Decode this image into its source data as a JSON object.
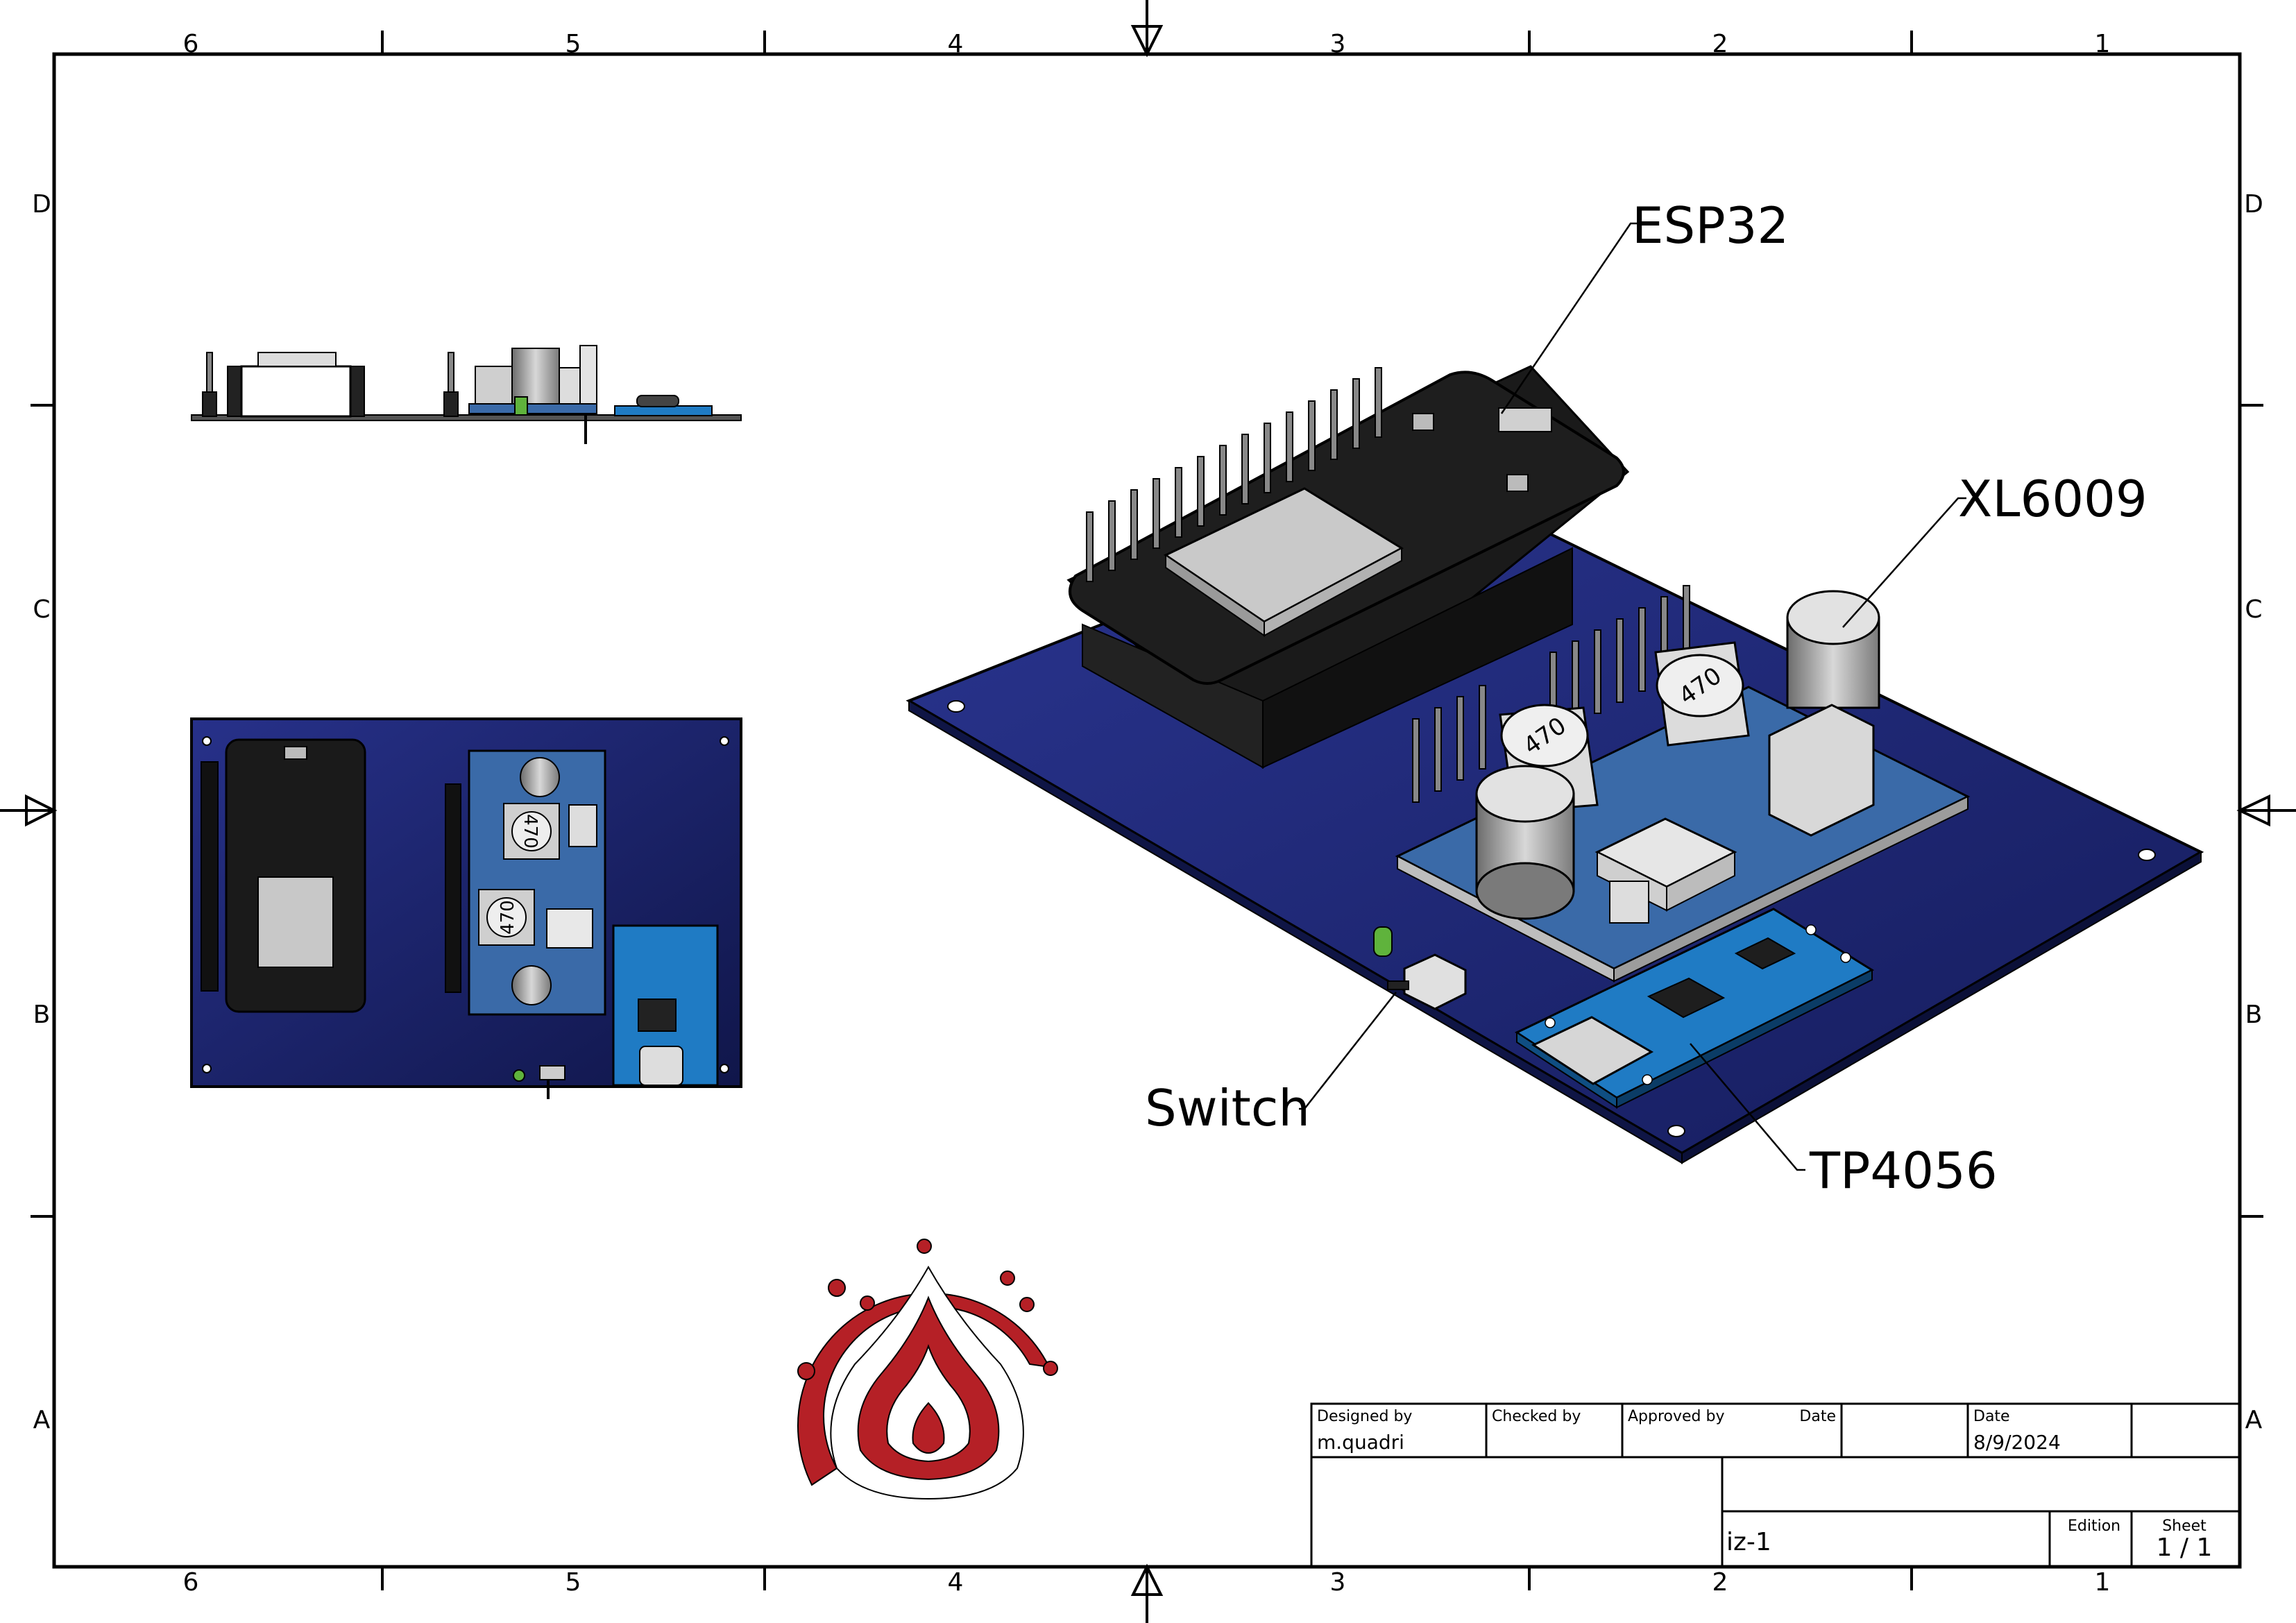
{
  "sheet": {
    "zone_columns": [
      "6",
      "5",
      "4",
      "3",
      "2",
      "1"
    ],
    "zone_rows": [
      "D",
      "C",
      "B",
      "A"
    ]
  },
  "callouts": {
    "esp32": "ESP32",
    "xl6009": "XL6009",
    "switch": "Switch",
    "tp4056": "TP4056"
  },
  "components": {
    "inductor_marking": "470"
  },
  "title_block": {
    "designed_by_label": "Designed by",
    "designed_by": "m.quadri",
    "checked_by_label": "Checked by",
    "checked_by": "",
    "approved_by_label": "Approved by",
    "approved_date_label": "Date",
    "date_label": "Date",
    "date": "8/9/2024",
    "drawing_name": "iz-1",
    "edition_label": "Edition",
    "edition": "",
    "sheet_label": "Sheet",
    "sheet_number": "1 / 1"
  },
  "colors": {
    "board_blue": "#1c2773",
    "board_edge": "#0f1545",
    "module_blue": "#3a6aa8",
    "charger_blue": "#1f7bc4",
    "logo_red": "#b52026",
    "esp_black": "#1a1a1a"
  }
}
